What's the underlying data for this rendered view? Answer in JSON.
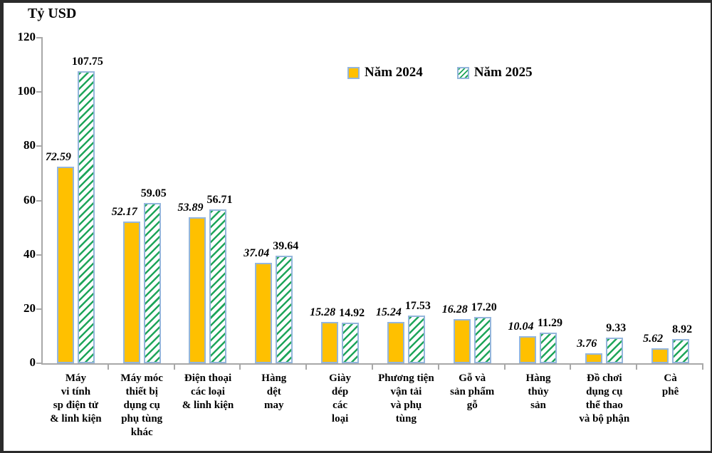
{
  "frame": {
    "background": "#FFFFFF",
    "border_color": "#2B2B2B"
  },
  "chart_data": {
    "type": "bar",
    "axis_title": "Tỷ USD",
    "ylim": [
      0,
      120
    ],
    "yticks": [
      0,
      20,
      40,
      60,
      80,
      100,
      120
    ],
    "grid": false,
    "legend_position": "top-center",
    "categories": [
      "Máy vi tính sp điện tử & linh kiện",
      "Máy móc thiết bị dụng cụ phụ tùng khác",
      "Điện thoại các loại & linh kiện",
      "Hàng dệt may",
      "Giày dép các loại",
      "Phương tiện vận tải và phụ tùng",
      "Gỗ và sản phẩm gỗ",
      "Hàng thủy sản",
      "Đồ chơi dụng cụ thể thao và bộ phận",
      "Cà phê"
    ],
    "categories_lines": [
      [
        "Máy",
        "vi tính",
        "sp điện tử",
        "& linh kiện"
      ],
      [
        "Máy móc",
        "thiết bị",
        "dụng cụ",
        "phụ tùng",
        "khác"
      ],
      [
        "Điện thoại",
        "các loại",
        "& linh kiện"
      ],
      [
        "Hàng",
        "dệt",
        "may"
      ],
      [
        "Giày",
        "dép",
        "các",
        "loại"
      ],
      [
        "Phương tiện",
        "vận tải",
        "và phụ",
        "tùng"
      ],
      [
        "Gỗ và",
        "sản phẩm",
        "gỗ"
      ],
      [
        "Hàng",
        "thủy",
        "sản"
      ],
      [
        "Đồ chơi",
        "dụng cụ",
        "thể thao",
        "và bộ phận"
      ],
      [
        "Cà",
        "phê"
      ]
    ],
    "series": [
      {
        "name": "Năm 2024",
        "color": "#FFC000",
        "pattern": "solid",
        "label_style": "bold-italic",
        "values": [
          72.59,
          52.17,
          53.89,
          37.04,
          15.28,
          15.24,
          16.28,
          10.04,
          3.76,
          5.62
        ]
      },
      {
        "name": "Năm 2025",
        "color": "#1EA55A",
        "pattern": "diagonal-hatch",
        "label_style": "bold",
        "values": [
          107.75,
          59.05,
          56.71,
          39.64,
          14.92,
          17.53,
          17.2,
          11.29,
          9.33,
          8.92
        ]
      }
    ],
    "bar_border_color": "#94B6DC",
    "axis_color": "#A8A8A8",
    "text_color": "#000000"
  }
}
